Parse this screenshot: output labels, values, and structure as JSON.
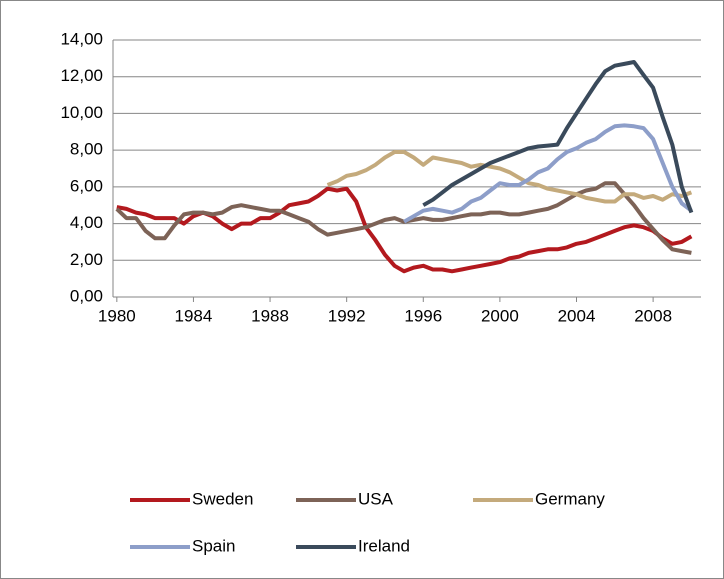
{
  "chart_data": {
    "type": "line",
    "x": [
      1980,
      1980.5,
      1981,
      1981.5,
      1982,
      1982.5,
      1983,
      1983.5,
      1984,
      1984.5,
      1985,
      1985.5,
      1986,
      1986.5,
      1987,
      1987.5,
      1988,
      1988.5,
      1989,
      1989.5,
      1990,
      1990.5,
      1991,
      1991.5,
      1992,
      1992.5,
      1993,
      1993.5,
      1994,
      1994.5,
      1995,
      1995.5,
      1996,
      1996.5,
      1997,
      1997.5,
      1998,
      1998.5,
      1999,
      1999.5,
      2000,
      2000.5,
      2001,
      2001.5,
      2002,
      2002.5,
      2003,
      2003.5,
      2004,
      2004.5,
      2005,
      2005.5,
      2006,
      2006.5,
      2007,
      2007.5,
      2008,
      2008.5,
      2009,
      2009.5,
      2010
    ],
    "series": [
      {
        "name": "Sweden",
        "color": "#b3191e",
        "values": [
          4.9,
          4.8,
          4.6,
          4.5,
          4.3,
          4.3,
          4.3,
          4.0,
          4.4,
          4.6,
          4.4,
          4.0,
          3.7,
          4.0,
          4.0,
          4.3,
          4.3,
          4.6,
          5.0,
          5.1,
          5.2,
          5.5,
          5.9,
          5.8,
          5.9,
          5.2,
          3.8,
          3.1,
          2.3,
          1.7,
          1.4,
          1.6,
          1.7,
          1.5,
          1.5,
          1.4,
          1.5,
          1.6,
          1.7,
          1.8,
          1.9,
          2.1,
          2.2,
          2.4,
          2.5,
          2.6,
          2.6,
          2.7,
          2.9,
          3.0,
          3.2,
          3.4,
          3.6,
          3.8,
          3.9,
          3.8,
          3.6,
          3.2,
          2.9,
          3.0,
          3.3
        ]
      },
      {
        "name": "USA",
        "color": "#7d6357",
        "values": [
          4.8,
          4.3,
          4.3,
          3.6,
          3.2,
          3.2,
          3.9,
          4.5,
          4.6,
          4.6,
          4.5,
          4.6,
          4.9,
          5.0,
          4.9,
          4.8,
          4.7,
          4.7,
          4.5,
          4.3,
          4.1,
          3.7,
          3.4,
          3.5,
          3.6,
          3.7,
          3.8,
          4.0,
          4.2,
          4.3,
          4.1,
          4.2,
          4.3,
          4.2,
          4.2,
          4.3,
          4.4,
          4.5,
          4.5,
          4.6,
          4.6,
          4.5,
          4.5,
          4.6,
          4.7,
          4.8,
          5.0,
          5.3,
          5.6,
          5.8,
          5.9,
          6.2,
          6.2,
          5.6,
          5.0,
          4.3,
          3.7,
          3.1,
          2.6,
          2.5,
          2.4
        ]
      },
      {
        "name": "Germany",
        "color": "#c4aa7c",
        "values": [
          null,
          null,
          null,
          null,
          null,
          null,
          null,
          null,
          null,
          null,
          null,
          null,
          null,
          null,
          null,
          null,
          null,
          null,
          null,
          null,
          null,
          null,
          6.1,
          6.3,
          6.6,
          6.7,
          6.9,
          7.2,
          7.6,
          7.9,
          7.9,
          7.6,
          7.2,
          7.6,
          7.5,
          7.4,
          7.3,
          7.1,
          7.2,
          7.1,
          7.0,
          6.8,
          6.5,
          6.2,
          6.1,
          5.9,
          5.8,
          5.7,
          5.6,
          5.4,
          5.3,
          5.2,
          5.2,
          5.6,
          5.6,
          5.4,
          5.5,
          5.3,
          5.6,
          5.5,
          5.7
        ]
      },
      {
        "name": "Spain",
        "color": "#8d9ec9",
        "values": [
          null,
          null,
          null,
          null,
          null,
          null,
          null,
          null,
          null,
          null,
          null,
          null,
          null,
          null,
          null,
          null,
          null,
          null,
          null,
          null,
          null,
          null,
          null,
          null,
          null,
          null,
          null,
          null,
          null,
          null,
          4.1,
          4.4,
          4.7,
          4.8,
          4.7,
          4.6,
          4.8,
          5.2,
          5.4,
          5.8,
          6.2,
          6.1,
          6.1,
          6.4,
          6.8,
          7.0,
          7.5,
          7.9,
          8.1,
          8.4,
          8.6,
          9.0,
          9.3,
          9.35,
          9.3,
          9.2,
          8.6,
          7.3,
          6.0,
          5.1,
          4.7
        ]
      },
      {
        "name": "Ireland",
        "color": "#3a4a5b",
        "values": [
          null,
          null,
          null,
          null,
          null,
          null,
          null,
          null,
          null,
          null,
          null,
          null,
          null,
          null,
          null,
          null,
          null,
          null,
          null,
          null,
          null,
          null,
          null,
          null,
          null,
          null,
          null,
          null,
          null,
          null,
          null,
          null,
          5.0,
          5.3,
          5.7,
          6.1,
          6.4,
          6.7,
          7.0,
          7.3,
          7.5,
          7.7,
          7.9,
          8.1,
          8.2,
          8.25,
          8.3,
          9.2,
          10.0,
          10.8,
          11.6,
          12.3,
          12.6,
          12.7,
          12.8,
          12.1,
          11.4,
          9.8,
          8.3,
          6.0,
          4.6
        ]
      }
    ],
    "xlim": [
      1979.8,
      2010.5
    ],
    "xticks": [
      1980,
      1984,
      1988,
      1992,
      1996,
      2000,
      2004,
      2008
    ],
    "ylim": [
      0,
      14
    ],
    "yticks": [
      {
        "value": 0,
        "label": "0,00"
      },
      {
        "value": 2,
        "label": "2,00"
      },
      {
        "value": 4,
        "label": "4,00"
      },
      {
        "value": 6,
        "label": "6,00"
      },
      {
        "value": 8,
        "label": "8,00"
      },
      {
        "value": 10,
        "label": "10,00"
      },
      {
        "value": 12,
        "label": "12,00"
      },
      {
        "value": 14,
        "label": "14,00"
      }
    ],
    "grid": true
  }
}
